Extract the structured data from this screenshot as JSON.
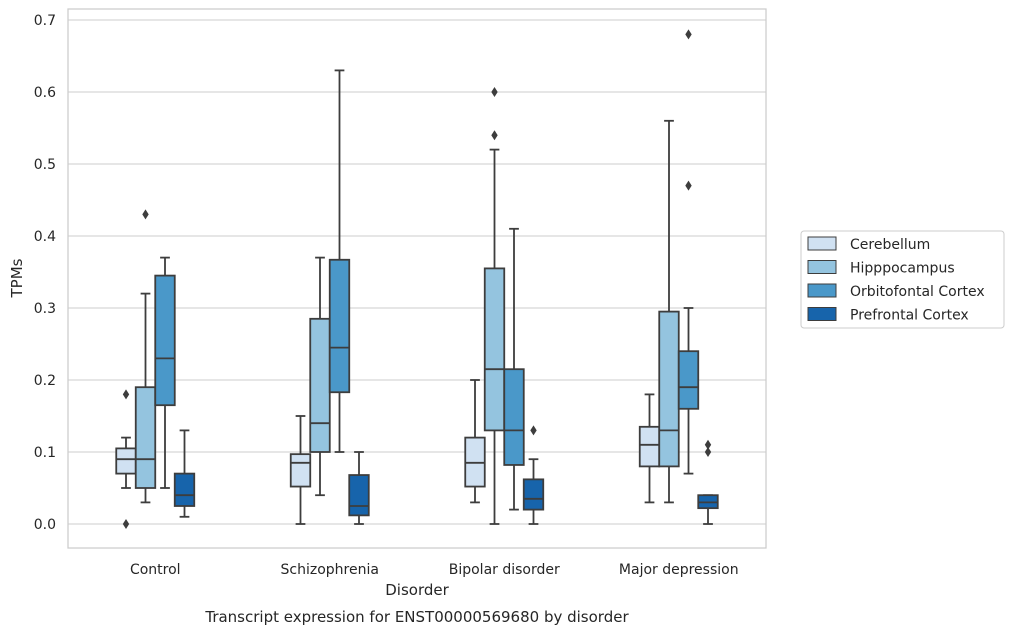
{
  "chart_data": {
    "type": "box",
    "title": "Transcript expression for ENST00000569680 by disorder",
    "xlabel": "Disorder",
    "ylabel": "TPMs",
    "ylim": [
      -0.033,
      0.715
    ],
    "yticks": [
      "0.0",
      "0.1",
      "0.2",
      "0.3",
      "0.4",
      "0.5",
      "0.6",
      "0.7"
    ],
    "grid": "horizontal",
    "legend_position": "right",
    "categories": [
      "Control",
      "Schizophrenia",
      "Bipolar disorder",
      "Major depression"
    ],
    "series": [
      {
        "name": "Cerebellum",
        "color": "#d0e1f2",
        "boxes": [
          {
            "whislo": 0.05,
            "q1": 0.07,
            "med": 0.09,
            "q3": 0.105,
            "whishi": 0.12,
            "fliers": [
              0.18,
              0.0
            ]
          },
          {
            "whislo": 0.0,
            "q1": 0.052,
            "med": 0.085,
            "q3": 0.097,
            "whishi": 0.15,
            "fliers": []
          },
          {
            "whislo": 0.03,
            "q1": 0.052,
            "med": 0.085,
            "q3": 0.12,
            "whishi": 0.2,
            "fliers": []
          },
          {
            "whislo": 0.03,
            "q1": 0.08,
            "med": 0.11,
            "q3": 0.135,
            "whishi": 0.18,
            "fliers": []
          }
        ]
      },
      {
        "name": "Hipppocampus",
        "color": "#94c4df",
        "boxes": [
          {
            "whislo": 0.03,
            "q1": 0.05,
            "med": 0.09,
            "q3": 0.19,
            "whishi": 0.32,
            "fliers": [
              0.43
            ]
          },
          {
            "whislo": 0.04,
            "q1": 0.1,
            "med": 0.14,
            "q3": 0.285,
            "whishi": 0.37,
            "fliers": []
          },
          {
            "whislo": 0.0,
            "q1": 0.13,
            "med": 0.215,
            "q3": 0.355,
            "whishi": 0.52,
            "fliers": [
              0.6,
              0.54
            ]
          },
          {
            "whislo": 0.03,
            "q1": 0.08,
            "med": 0.13,
            "q3": 0.295,
            "whishi": 0.56,
            "fliers": []
          }
        ]
      },
      {
        "name": "Orbitofontal Cortex",
        "color": "#4a98c9",
        "boxes": [
          {
            "whislo": 0.05,
            "q1": 0.165,
            "med": 0.23,
            "q3": 0.345,
            "whishi": 0.37,
            "fliers": []
          },
          {
            "whislo": 0.1,
            "q1": 0.183,
            "med": 0.245,
            "q3": 0.367,
            "whishi": 0.63,
            "fliers": []
          },
          {
            "whislo": 0.02,
            "q1": 0.082,
            "med": 0.13,
            "q3": 0.215,
            "whishi": 0.41,
            "fliers": []
          },
          {
            "whislo": 0.07,
            "q1": 0.16,
            "med": 0.19,
            "q3": 0.24,
            "whishi": 0.3,
            "fliers": [
              0.68,
              0.47
            ]
          }
        ]
      },
      {
        "name": "Prefrontal Cortex",
        "color": "#1764ab",
        "boxes": [
          {
            "whislo": 0.01,
            "q1": 0.025,
            "med": 0.04,
            "q3": 0.07,
            "whishi": 0.13,
            "fliers": []
          },
          {
            "whislo": 0.0,
            "q1": 0.012,
            "med": 0.025,
            "q3": 0.068,
            "whishi": 0.1,
            "fliers": []
          },
          {
            "whislo": 0.0,
            "q1": 0.02,
            "med": 0.035,
            "q3": 0.062,
            "whishi": 0.09,
            "fliers": [
              0.13
            ]
          },
          {
            "whislo": 0.0,
            "q1": 0.022,
            "med": 0.03,
            "q3": 0.04,
            "whishi": 0.04,
            "fliers": [
              0.11,
              0.1
            ]
          }
        ]
      }
    ]
  }
}
